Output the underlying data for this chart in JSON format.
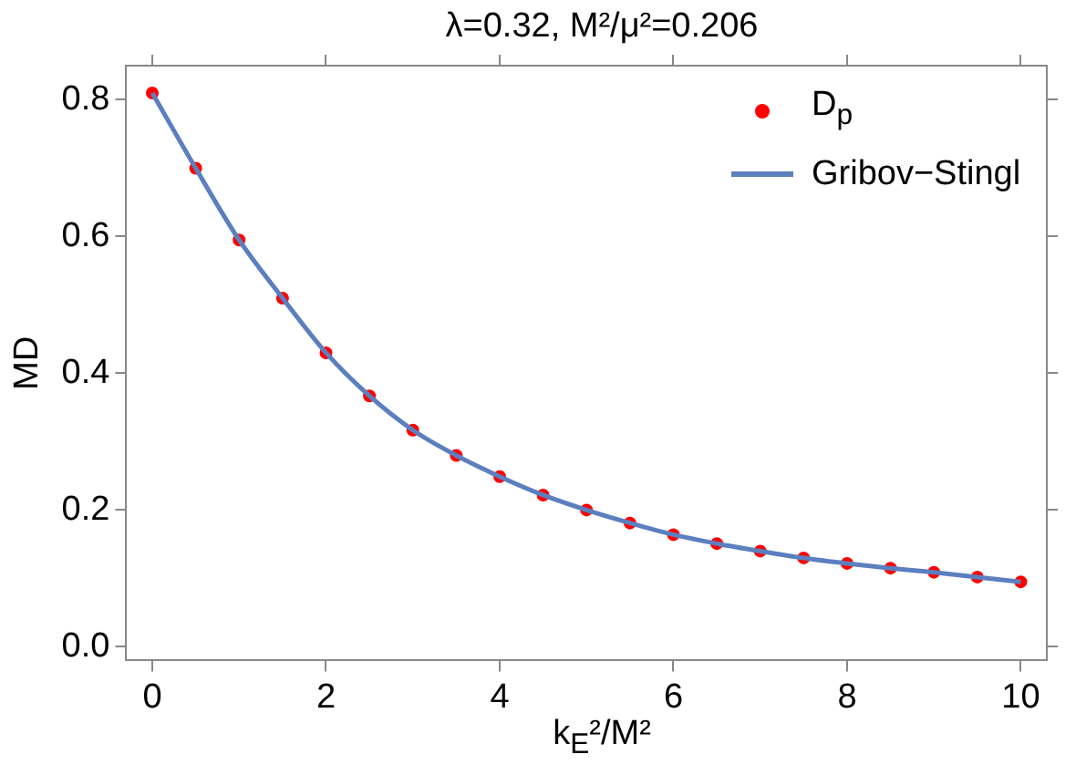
{
  "chart_data": {
    "type": "line",
    "title": "λ=0.32, M²/μ²=0.206",
    "xlabel": "k$_{E}$²/M²",
    "ylabel": "MD",
    "x": [
      0,
      0.5,
      1,
      1.5,
      2,
      2.5,
      3,
      3.5,
      4,
      4.5,
      5,
      5.5,
      6,
      6.5,
      7,
      7.5,
      8,
      8.5,
      9,
      9.5,
      10
    ],
    "series": [
      {
        "name": "D$_{p}$",
        "type": "scatter",
        "color": "#ff0000",
        "marker": "circle",
        "values": [
          0.81,
          0.7,
          0.595,
          0.51,
          0.43,
          0.367,
          0.317,
          0.28,
          0.249,
          0.222,
          0.2,
          0.181,
          0.164,
          0.151,
          0.14,
          0.13,
          0.122,
          0.115,
          0.109,
          0.102,
          0.095
        ]
      },
      {
        "name": "Gribov−Stingl",
        "color": "#5b7fbf",
        "values": [
          0.81,
          0.7,
          0.595,
          0.51,
          0.43,
          0.367,
          0.317,
          0.28,
          0.249,
          0.222,
          0.2,
          0.181,
          0.164,
          0.151,
          0.14,
          0.13,
          0.122,
          0.115,
          0.109,
          0.102,
          0.095
        ]
      }
    ],
    "xlim": [
      -0.3,
      10.3
    ],
    "xticks": [
      0,
      2,
      4,
      6,
      8,
      10
    ],
    "ylim": [
      -0.02,
      0.85
    ],
    "yticks": [
      {
        "value": 0,
        "label": "0.0"
      },
      0.2,
      0.4,
      0.6,
      0.8
    ],
    "grid": false,
    "legend": "top right"
  }
}
